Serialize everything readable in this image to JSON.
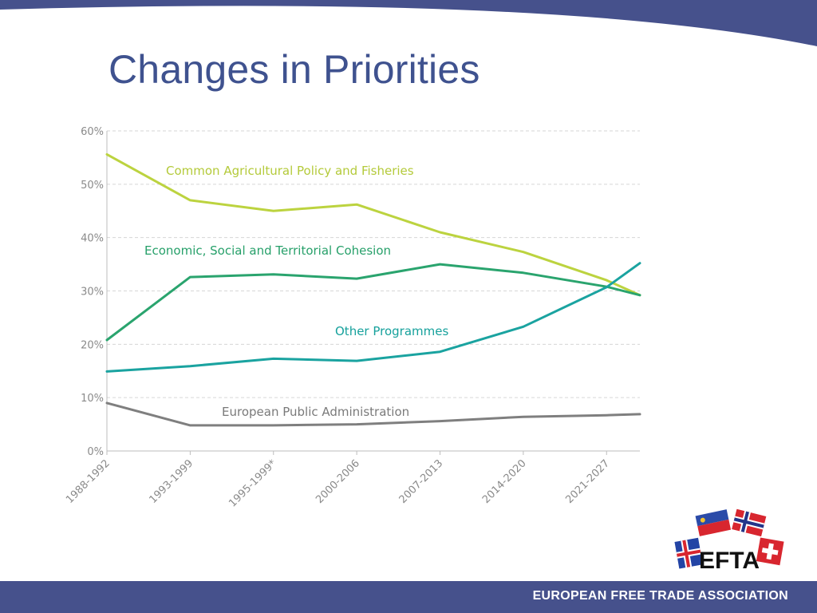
{
  "slide": {
    "title": "Changes in Priorities",
    "footer": "EUROPEAN FREE TRADE ASSOCIATION",
    "logo_text": "EFTA",
    "brand_color": "#46518c"
  },
  "chart_data": {
    "type": "line",
    "categories": [
      "1988-1992",
      "1993-1999",
      "1995-1999*",
      "2000-2006",
      "2007-2013",
      "2014-2020",
      "2021-2027"
    ],
    "x_label_positions": [
      0,
      1,
      2,
      3,
      4,
      5,
      6
    ],
    "x_range": [
      0,
      6.4
    ],
    "ylim": [
      0,
      60
    ],
    "yticks": [
      "0%",
      "10%",
      "20%",
      "30%",
      "40%",
      "50%",
      "60%"
    ],
    "grid": true,
    "series": [
      {
        "name": "Common Agricultural Policy and Fisheries",
        "color": "#bcd33f",
        "x": [
          0,
          1,
          2,
          3,
          4,
          5,
          6,
          6.4
        ],
        "values": [
          55.6,
          47.0,
          45.0,
          46.2,
          41.0,
          37.3,
          32.0,
          29.2
        ]
      },
      {
        "name": "Economic, Social and Territorial Cohesion",
        "color": "#2aa46e",
        "x": [
          0,
          1,
          2,
          3,
          4,
          5,
          6,
          6.4
        ],
        "values": [
          20.8,
          32.6,
          33.1,
          32.3,
          35.0,
          33.4,
          30.8,
          29.2
        ]
      },
      {
        "name": "Other Programmes",
        "color": "#1aa3a0",
        "x": [
          0,
          1,
          2,
          3,
          4,
          5,
          6,
          6.4
        ],
        "values": [
          14.9,
          15.9,
          17.3,
          16.9,
          18.6,
          23.3,
          30.7,
          35.2
        ]
      },
      {
        "name": "European Public Administration",
        "color": "#7f7f7f",
        "x": [
          0,
          1,
          2,
          3,
          4,
          5,
          6,
          6.4
        ],
        "values": [
          9.0,
          4.8,
          4.8,
          5.0,
          5.6,
          6.4,
          6.7,
          6.9
        ]
      }
    ]
  }
}
